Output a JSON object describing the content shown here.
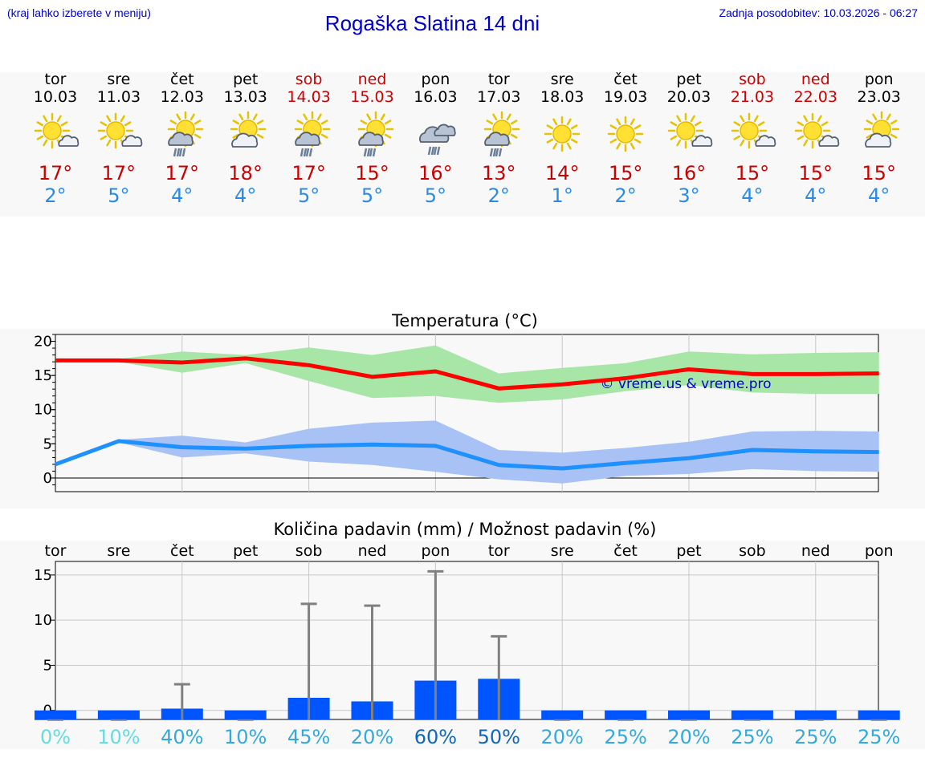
{
  "header": {
    "location_hint": "(kraj lahko izberete v meniju)",
    "title": "Rogaška Slatina 14 dni",
    "last_update": "Zadnja posodobitev: 10.03.2026 - 06:27"
  },
  "colors": {
    "max": "#cc0000",
    "min": "#2a8ae6",
    "link": "#0000cc",
    "bar": "#0055ff"
  },
  "days": [
    {
      "name": "tor",
      "date": "10.03",
      "weekend": false,
      "icon": "sun-small-cloud-icon",
      "max": "17°",
      "min": "2°"
    },
    {
      "name": "sre",
      "date": "11.03",
      "weekend": false,
      "icon": "sun-small-cloud-icon",
      "max": "17°",
      "min": "5°"
    },
    {
      "name": "čet",
      "date": "12.03",
      "weekend": false,
      "icon": "sun-cloud-rain-icon",
      "max": "17°",
      "min": "4°"
    },
    {
      "name": "pet",
      "date": "13.03",
      "weekend": false,
      "icon": "sun-cloud-icon",
      "max": "18°",
      "min": "4°"
    },
    {
      "name": "sob",
      "date": "14.03",
      "weekend": true,
      "icon": "sun-cloud-rain-icon",
      "max": "17°",
      "min": "5°"
    },
    {
      "name": "ned",
      "date": "15.03",
      "weekend": true,
      "icon": "sun-cloud-rain-icon",
      "max": "15°",
      "min": "5°"
    },
    {
      "name": "pon",
      "date": "16.03",
      "weekend": false,
      "icon": "cloud-rain-icon",
      "max": "16°",
      "min": "5°"
    },
    {
      "name": "tor",
      "date": "17.03",
      "weekend": false,
      "icon": "sun-cloud-rain-icon",
      "max": "13°",
      "min": "2°"
    },
    {
      "name": "sre",
      "date": "18.03",
      "weekend": false,
      "icon": "sun-icon",
      "max": "14°",
      "min": "1°"
    },
    {
      "name": "čet",
      "date": "19.03",
      "weekend": false,
      "icon": "sun-icon",
      "max": "15°",
      "min": "2°"
    },
    {
      "name": "pet",
      "date": "20.03",
      "weekend": false,
      "icon": "sun-small-cloud-icon",
      "max": "16°",
      "min": "3°"
    },
    {
      "name": "sob",
      "date": "21.03",
      "weekend": true,
      "icon": "sun-small-cloud-icon",
      "max": "15°",
      "min": "4°"
    },
    {
      "name": "ned",
      "date": "22.03",
      "weekend": true,
      "icon": "sun-small-cloud-icon",
      "max": "15°",
      "min": "4°"
    },
    {
      "name": "pon",
      "date": "23.03",
      "weekend": false,
      "icon": "sun-cloud-icon",
      "max": "15°",
      "min": "4°"
    }
  ],
  "chart_data": [
    {
      "type": "line",
      "title": "Temperatura (°C)",
      "watermark": "© vreme.us & vreme.pro",
      "ylim": [
        -2,
        21
      ],
      "yticks": [
        0,
        5,
        10,
        15,
        20
      ],
      "grid": true,
      "x": [
        0,
        1,
        2,
        3,
        4,
        5,
        6,
        7,
        8,
        9,
        10,
        11,
        12,
        13
      ],
      "series": [
        {
          "name": "max",
          "color": "#ff0000",
          "values": [
            17.2,
            17.2,
            16.9,
            17.5,
            16.5,
            14.8,
            15.6,
            13.1,
            13.7,
            14.6,
            15.9,
            15.2,
            15.2,
            15.3
          ]
        },
        {
          "name": "min",
          "color": "#1e90ff",
          "values": [
            2.0,
            5.4,
            4.5,
            4.3,
            4.7,
            4.9,
            4.7,
            1.9,
            1.4,
            2.2,
            2.9,
            4.1,
            3.9,
            3.8
          ]
        }
      ],
      "bands": [
        {
          "name": "max-range",
          "color": "#a8e6a8",
          "upper": [
            17.4,
            17.4,
            18.5,
            18.0,
            19.1,
            18.0,
            19.4,
            15.3,
            16.1,
            16.8,
            18.5,
            18.1,
            18.3,
            18.4
          ],
          "lower": [
            17.0,
            17.0,
            15.4,
            16.8,
            14.2,
            11.7,
            12.0,
            11.0,
            11.5,
            12.7,
            13.6,
            12.5,
            12.3,
            12.3
          ]
        },
        {
          "name": "min-range",
          "color": "#a9c2f5",
          "upper": [
            2.2,
            5.6,
            6.2,
            5.2,
            7.2,
            8.1,
            8.4,
            4.1,
            3.7,
            4.4,
            5.3,
            6.8,
            6.9,
            6.8
          ],
          "lower": [
            1.8,
            5.2,
            3.0,
            3.6,
            2.4,
            1.9,
            0.9,
            -0.2,
            -0.8,
            0.3,
            0.6,
            1.3,
            1.0,
            0.9
          ]
        }
      ]
    },
    {
      "type": "bar",
      "title": "Količina padavin (mm) / Možnost padavin (%)",
      "categories": [
        "tor",
        "sre",
        "čet",
        "pet",
        "sob",
        "ned",
        "pon",
        "tor",
        "sre",
        "čet",
        "pet",
        "sob",
        "ned",
        "pon"
      ],
      "ylim": [
        -1,
        16.5
      ],
      "yticks": [
        0,
        5,
        10,
        15
      ],
      "grid": true,
      "series": [
        {
          "name": "precipitation_mm",
          "color": "#0055ff",
          "values": [
            0,
            0,
            0.2,
            0,
            1.4,
            1.0,
            3.3,
            3.5,
            0,
            0,
            0,
            0,
            0,
            0
          ]
        },
        {
          "name": "precipitation_max_mm",
          "color": "#808080",
          "values": [
            0,
            0,
            2.9,
            0,
            11.8,
            11.6,
            15.4,
            8.2,
            0,
            0,
            0,
            0,
            0,
            0
          ]
        }
      ],
      "probability": [
        "0%",
        "10%",
        "40%",
        "10%",
        "45%",
        "20%",
        "60%",
        "50%",
        "20%",
        "25%",
        "20%",
        "25%",
        "25%",
        "25%"
      ],
      "probability_colors": [
        "#66dddd",
        "#66dddd",
        "#33aadd",
        "#33aadd",
        "#33aadd",
        "#33aadd",
        "#1166bb",
        "#1166bb",
        "#33aadd",
        "#33aadd",
        "#33aadd",
        "#33aadd",
        "#33aadd",
        "#33aadd"
      ]
    }
  ]
}
